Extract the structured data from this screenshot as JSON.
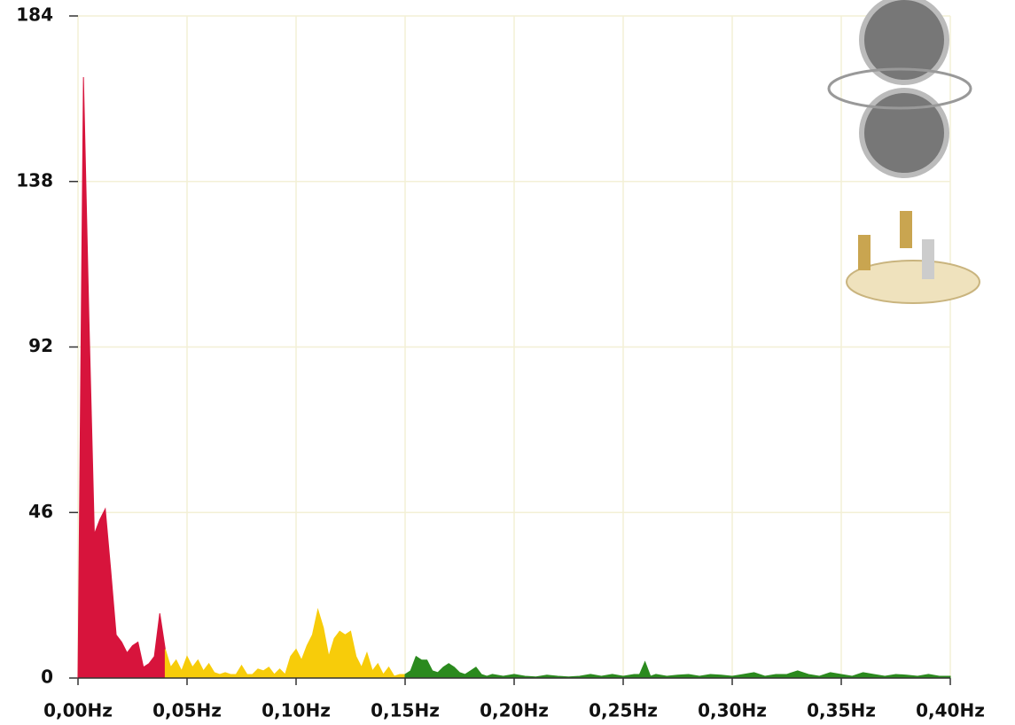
{
  "chart_data": {
    "type": "area",
    "xlim": [
      0,
      0.4
    ],
    "ylim": [
      0,
      184
    ],
    "yticks": [
      0,
      46,
      92,
      138,
      184
    ],
    "xticks": [
      {
        "value": 0,
        "label": "0,00Hz"
      },
      {
        "value": 0.05,
        "label": "0,05Hz"
      },
      {
        "value": 0.1,
        "label": "0,10Hz"
      },
      {
        "value": 0.15,
        "label": "0,15Hz"
      },
      {
        "value": 0.2,
        "label": "0,20Hz"
      },
      {
        "value": 0.25,
        "label": "0,25Hz"
      },
      {
        "value": 0.3,
        "label": "0,30Hz"
      },
      {
        "value": 0.35,
        "label": "0,35Hz"
      },
      {
        "value": 0.4,
        "label": "0,40Hz"
      }
    ],
    "grid": true,
    "series": [
      {
        "color": "#d7143c",
        "x": [
          0,
          0.0025,
          0.005,
          0.0075,
          0.01,
          0.0125,
          0.015,
          0.0175,
          0.02,
          0.0225,
          0.025,
          0.0275,
          0.03,
          0.0325,
          0.035,
          0.0375,
          0.04
        ],
        "values": [
          0,
          167,
          100,
          40,
          44,
          47,
          30,
          12,
          10,
          7,
          9,
          10,
          3,
          4,
          6,
          18,
          8
        ]
      },
      {
        "color": "#f7cc0a",
        "x": [
          0.04,
          0.0425,
          0.045,
          0.0475,
          0.05,
          0.0525,
          0.055,
          0.0575,
          0.06,
          0.0625,
          0.065,
          0.0675,
          0.07,
          0.0725,
          0.075,
          0.0775,
          0.08,
          0.0825,
          0.085,
          0.0875,
          0.09,
          0.0925,
          0.095,
          0.0975,
          0.1,
          0.1025,
          0.105,
          0.1075,
          0.11,
          0.1125,
          0.115,
          0.1175,
          0.12,
          0.1225,
          0.125,
          0.1275,
          0.13,
          0.1325,
          0.135,
          0.1375,
          0.14,
          0.1425,
          0.145,
          0.1475,
          0.15
        ],
        "values": [
          8,
          3,
          5,
          2,
          6,
          3,
          5,
          2,
          4,
          1.5,
          1,
          1.5,
          1,
          1,
          3.5,
          1,
          1,
          2.5,
          2,
          3,
          1,
          2.5,
          1,
          6,
          8,
          5,
          9,
          12,
          19,
          14,
          6,
          11,
          13,
          12,
          13,
          6,
          3,
          7,
          2,
          4,
          1,
          3,
          0.5,
          1,
          1
        ]
      },
      {
        "color": "#2b8a1e",
        "x": [
          0.15,
          0.1525,
          0.155,
          0.1575,
          0.16,
          0.1625,
          0.165,
          0.1675,
          0.17,
          0.1725,
          0.175,
          0.1775,
          0.18,
          0.1825,
          0.185,
          0.1875,
          0.19,
          0.195,
          0.2,
          0.205,
          0.21,
          0.215,
          0.22,
          0.225,
          0.23,
          0.235,
          0.24,
          0.245,
          0.25,
          0.255,
          0.2575,
          0.26,
          0.2625,
          0.265,
          0.27,
          0.275,
          0.28,
          0.285,
          0.29,
          0.295,
          0.3,
          0.305,
          0.31,
          0.315,
          0.32,
          0.325,
          0.33,
          0.335,
          0.34,
          0.345,
          0.35,
          0.355,
          0.36,
          0.365,
          0.37,
          0.375,
          0.38,
          0.385,
          0.39,
          0.395,
          0.4
        ],
        "values": [
          1,
          2,
          6,
          5,
          5,
          2,
          1.5,
          3,
          4,
          3,
          1.5,
          1,
          2,
          3,
          1,
          0.5,
          1,
          0.5,
          1,
          0.5,
          0.3,
          0.8,
          0.5,
          0.3,
          0.5,
          1,
          0.5,
          1,
          0.5,
          1,
          1,
          4.5,
          0.5,
          1,
          0.5,
          0.8,
          1,
          0.5,
          1,
          0.8,
          0.5,
          1,
          1.5,
          0.5,
          1,
          1,
          2,
          1,
          0.5,
          1.5,
          1,
          0.5,
          1.5,
          1,
          0.5,
          1,
          0.8,
          0.5,
          1,
          0.5,
          0.5
        ]
      }
    ]
  }
}
